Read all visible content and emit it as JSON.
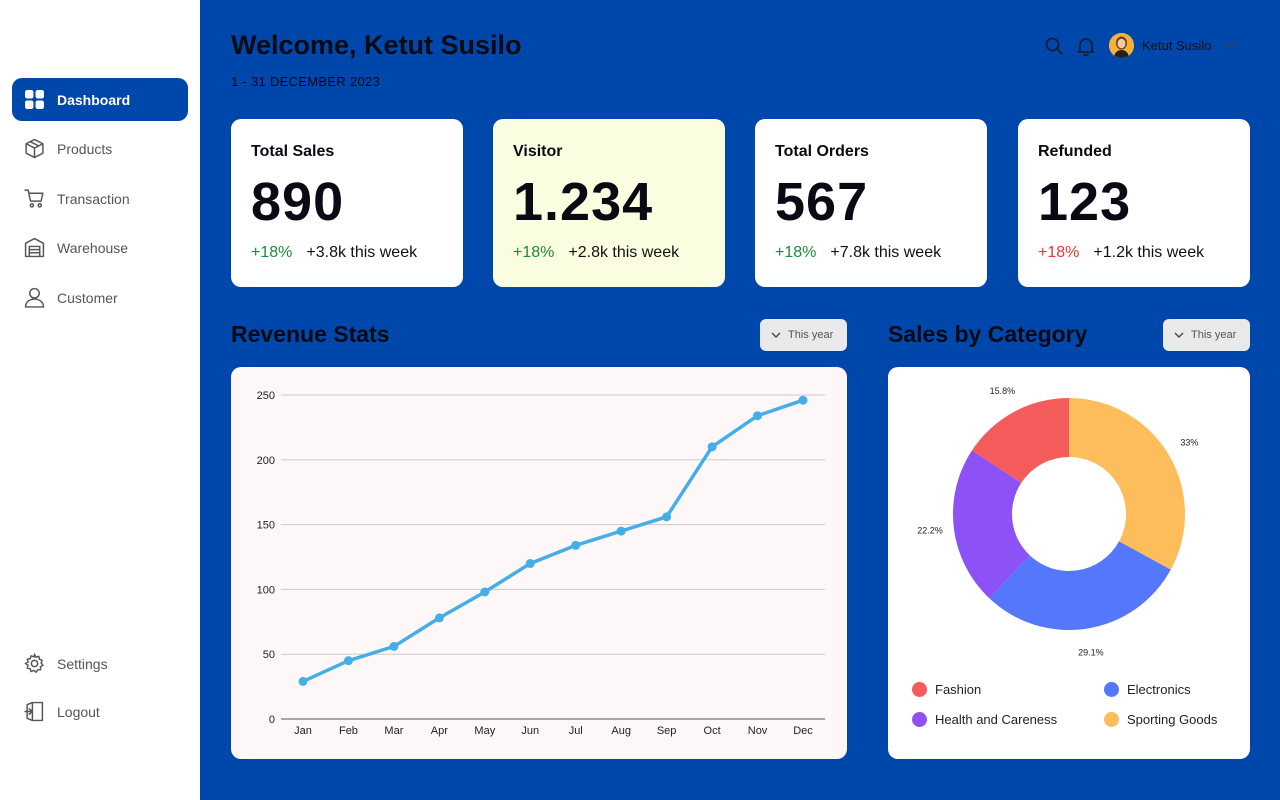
{
  "sidebar": {
    "items": [
      {
        "label": "Dashboard",
        "icon": "grid-icon",
        "active": true
      },
      {
        "label": "Products",
        "icon": "box-icon"
      },
      {
        "label": "Transaction",
        "icon": "cart-icon"
      },
      {
        "label": "Warehouse",
        "icon": "warehouse-icon"
      },
      {
        "label": "Customer",
        "icon": "user-icon"
      }
    ],
    "bottom": [
      {
        "label": "Settings",
        "icon": "gear-icon"
      },
      {
        "label": "Logout",
        "icon": "logout-icon"
      }
    ]
  },
  "header": {
    "welcome": "Welcome, Ketut Susilo",
    "date_range": "1 - 31 DECEMBER 2023",
    "user_name": "Ketut Susilo"
  },
  "cards": [
    {
      "title": "Total Sales",
      "value": "890",
      "pct": "+18%",
      "pct_status": "up",
      "week": "+3.8k this week"
    },
    {
      "title": "Visitor",
      "value": "1.234",
      "pct": "+18%",
      "pct_status": "up",
      "week": "+2.8k this week"
    },
    {
      "title": "Total Orders",
      "value": "567",
      "pct": "+18%",
      "pct_status": "up",
      "week": "+7.8k this week"
    },
    {
      "title": "Refunded",
      "value": "123",
      "pct": "+18%",
      "pct_status": "down",
      "week": "+1.2k this week"
    }
  ],
  "revenue": {
    "title": "Revenue Stats",
    "period": "This year"
  },
  "category": {
    "title": "Sales by Category",
    "period": "This year"
  },
  "colors": {
    "primary": "#0047AB",
    "line": "#45AEE6",
    "fashion": "#F45B5B",
    "electronics": "#5577FB",
    "health": "#8C52F8",
    "sporting": "#FDBD5A"
  },
  "chart_data": [
    {
      "type": "line",
      "categories": [
        "Jan",
        "Feb",
        "Mar",
        "Apr",
        "May",
        "Jun",
        "Jul",
        "Aug",
        "Sep",
        "Oct",
        "Nov",
        "Dec"
      ],
      "series": [
        {
          "values": [
            29,
            45,
            56,
            78,
            98,
            120,
            134,
            145,
            156,
            210,
            234,
            246
          ]
        }
      ],
      "yticks": [
        0,
        50,
        100,
        150,
        200,
        250
      ],
      "ylim": [
        0,
        250
      ],
      "grid": true
    },
    {
      "type": "pie",
      "donut": true,
      "slices": [
        {
          "name": "Sporting Goods",
          "value": 33,
          "label": "33%"
        },
        {
          "name": "Electronics",
          "value": 29.1,
          "label": "29.1%"
        },
        {
          "name": "Health and Careness",
          "value": 22.2,
          "label": "22.2%"
        },
        {
          "name": "Fashion",
          "value": 15.8,
          "label": "15.8%"
        }
      ],
      "legend": [
        "Fashion",
        "Electronics",
        "Health and Careness",
        "Sporting Goods"
      ],
      "legend_position": "bottom"
    }
  ]
}
